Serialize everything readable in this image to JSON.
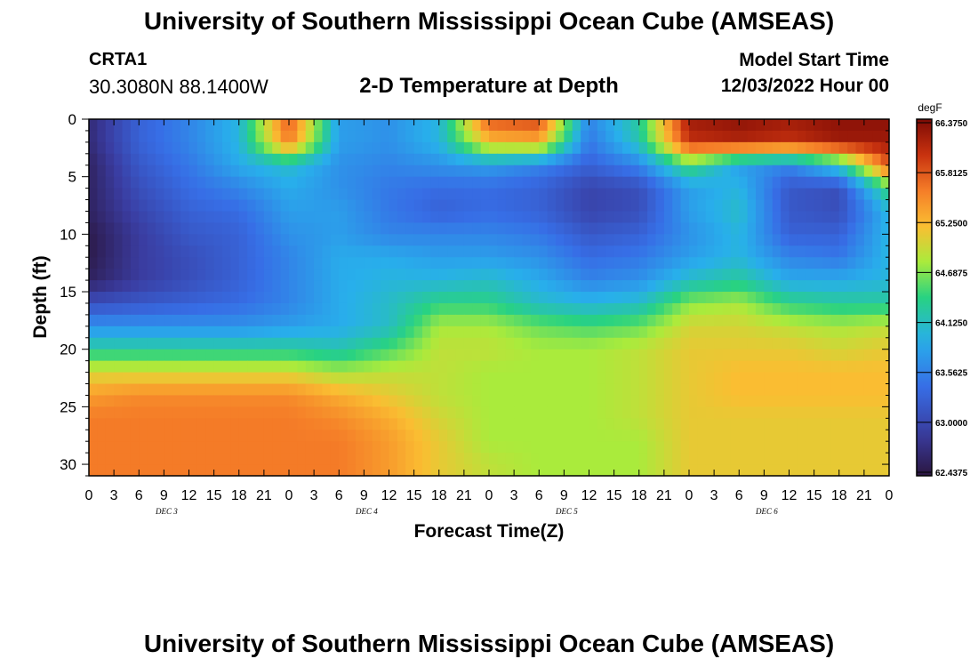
{
  "page_title": "University of Southern Mississippi Ocean Cube (AMSEAS)",
  "station_name": "CRTA1",
  "station_coords": "30.3080N  88.1400W",
  "model_start_label": "Model Start Time",
  "model_start_value": "12/03/2022 Hour 00",
  "chart_data": {
    "type": "heatmap",
    "title": "2-D Temperature at Depth",
    "xlabel": "Forecast Time(Z)",
    "ylabel": "Depth (ft)",
    "x_hours_range": [
      0,
      96
    ],
    "ylim": [
      0,
      31
    ],
    "y_inverted": true,
    "x_tick_labels": [
      "0",
      "3",
      "6",
      "9",
      "12",
      "15",
      "18",
      "21",
      "0",
      "3",
      "6",
      "9",
      "12",
      "15",
      "18",
      "21",
      "0",
      "3",
      "6",
      "9",
      "12",
      "15",
      "18",
      "21",
      "0",
      "3",
      "6",
      "9",
      "12",
      "15",
      "18",
      "21",
      "0"
    ],
    "day_labels": [
      {
        "label": "DEC 3",
        "hour": 9
      },
      {
        "label": "DEC 4",
        "hour": 33
      },
      {
        "label": "DEC 5",
        "hour": 57
      },
      {
        "label": "DEC 6",
        "hour": 81
      }
    ],
    "y_ticks": [
      0,
      5,
      10,
      15,
      20,
      25,
      30
    ],
    "colorbar": {
      "unit": "degF",
      "min": 62.4375,
      "max": 66.375,
      "tick_labels": [
        "66.3750",
        "65.8125",
        "65.2500",
        "64.6875",
        "64.1250",
        "63.5625",
        "63.0000",
        "62.4375"
      ]
    },
    "depths_ft": [
      0,
      2,
      4,
      6,
      8,
      10,
      12,
      14,
      16,
      18,
      20,
      22,
      24,
      26,
      28,
      30
    ],
    "times_hr": [
      0,
      6,
      12,
      18,
      24,
      30,
      36,
      42,
      48,
      54,
      60,
      66,
      72,
      78,
      84,
      90,
      96
    ],
    "temperature_degF": [
      [
        62.7,
        63.3,
        63.6,
        64.0,
        65.8,
        63.8,
        63.7,
        64.0,
        65.8,
        65.9,
        63.6,
        64.3,
        66.2,
        66.3,
        66.2,
        66.3,
        66.3
      ],
      [
        62.7,
        63.3,
        63.6,
        64.0,
        65.6,
        63.8,
        63.7,
        64.0,
        65.2,
        65.3,
        63.5,
        64.2,
        66.0,
        66.1,
        66.0,
        66.2,
        66.2
      ],
      [
        62.6,
        63.2,
        63.5,
        63.9,
        64.1,
        63.7,
        63.6,
        63.7,
        63.8,
        63.6,
        63.3,
        63.6,
        64.5,
        63.8,
        63.6,
        64.2,
        65.8
      ],
      [
        62.6,
        63.1,
        63.4,
        63.6,
        63.9,
        63.7,
        63.5,
        63.4,
        63.4,
        63.3,
        63.0,
        63.1,
        63.8,
        64.0,
        63.2,
        63.1,
        64.5
      ],
      [
        62.6,
        63.0,
        63.3,
        63.4,
        63.8,
        63.8,
        63.5,
        63.3,
        63.4,
        63.3,
        63.0,
        63.1,
        63.8,
        64.1,
        63.2,
        63.1,
        64.0
      ],
      [
        62.5,
        62.9,
        63.2,
        63.3,
        63.7,
        63.8,
        63.6,
        63.6,
        63.6,
        63.5,
        63.2,
        63.3,
        63.7,
        64.0,
        63.3,
        63.3,
        64.0
      ],
      [
        62.5,
        62.9,
        63.1,
        63.3,
        63.6,
        63.9,
        63.9,
        63.8,
        63.8,
        63.7,
        63.4,
        63.5,
        63.8,
        64.0,
        63.6,
        63.5,
        64.0
      ],
      [
        62.6,
        62.9,
        63.1,
        63.3,
        63.6,
        63.9,
        64.0,
        64.0,
        64.1,
        63.9,
        63.6,
        63.7,
        64.1,
        64.3,
        63.9,
        63.9,
        64.0
      ],
      [
        63.1,
        63.2,
        63.3,
        63.4,
        63.6,
        63.9,
        64.1,
        64.4,
        64.4,
        64.1,
        64.0,
        64.1,
        64.7,
        64.8,
        64.4,
        64.3,
        64.3
      ],
      [
        63.7,
        63.7,
        63.7,
        63.7,
        63.8,
        63.9,
        64.1,
        64.8,
        64.8,
        64.6,
        64.5,
        64.6,
        65.0,
        65.0,
        64.9,
        64.8,
        64.9
      ],
      [
        64.3,
        64.3,
        64.3,
        64.3,
        64.3,
        64.2,
        64.5,
        64.9,
        64.9,
        64.8,
        64.8,
        64.9,
        65.1,
        65.1,
        65.1,
        65.0,
        65.1
      ],
      [
        65.0,
        65.0,
        65.0,
        65.0,
        65.0,
        64.8,
        64.9,
        64.9,
        64.8,
        64.8,
        64.8,
        64.9,
        65.1,
        65.2,
        65.2,
        65.2,
        65.2
      ],
      [
        65.4,
        65.5,
        65.5,
        65.5,
        65.5,
        65.3,
        65.1,
        64.9,
        64.8,
        64.8,
        64.8,
        64.9,
        65.1,
        65.2,
        65.2,
        65.2,
        65.2
      ],
      [
        65.6,
        65.6,
        65.6,
        65.6,
        65.6,
        65.5,
        65.3,
        65.0,
        64.8,
        64.8,
        64.8,
        64.9,
        65.1,
        65.1,
        65.1,
        65.1,
        65.1
      ],
      [
        65.6,
        65.6,
        65.6,
        65.6,
        65.6,
        65.6,
        65.4,
        65.1,
        64.8,
        64.8,
        64.8,
        64.8,
        65.1,
        65.1,
        65.1,
        65.1,
        65.1
      ],
      [
        65.6,
        65.6,
        65.6,
        65.6,
        65.6,
        65.6,
        65.4,
        65.1,
        64.9,
        64.8,
        64.8,
        64.8,
        65.1,
        65.1,
        65.1,
        65.1,
        65.1
      ]
    ]
  }
}
